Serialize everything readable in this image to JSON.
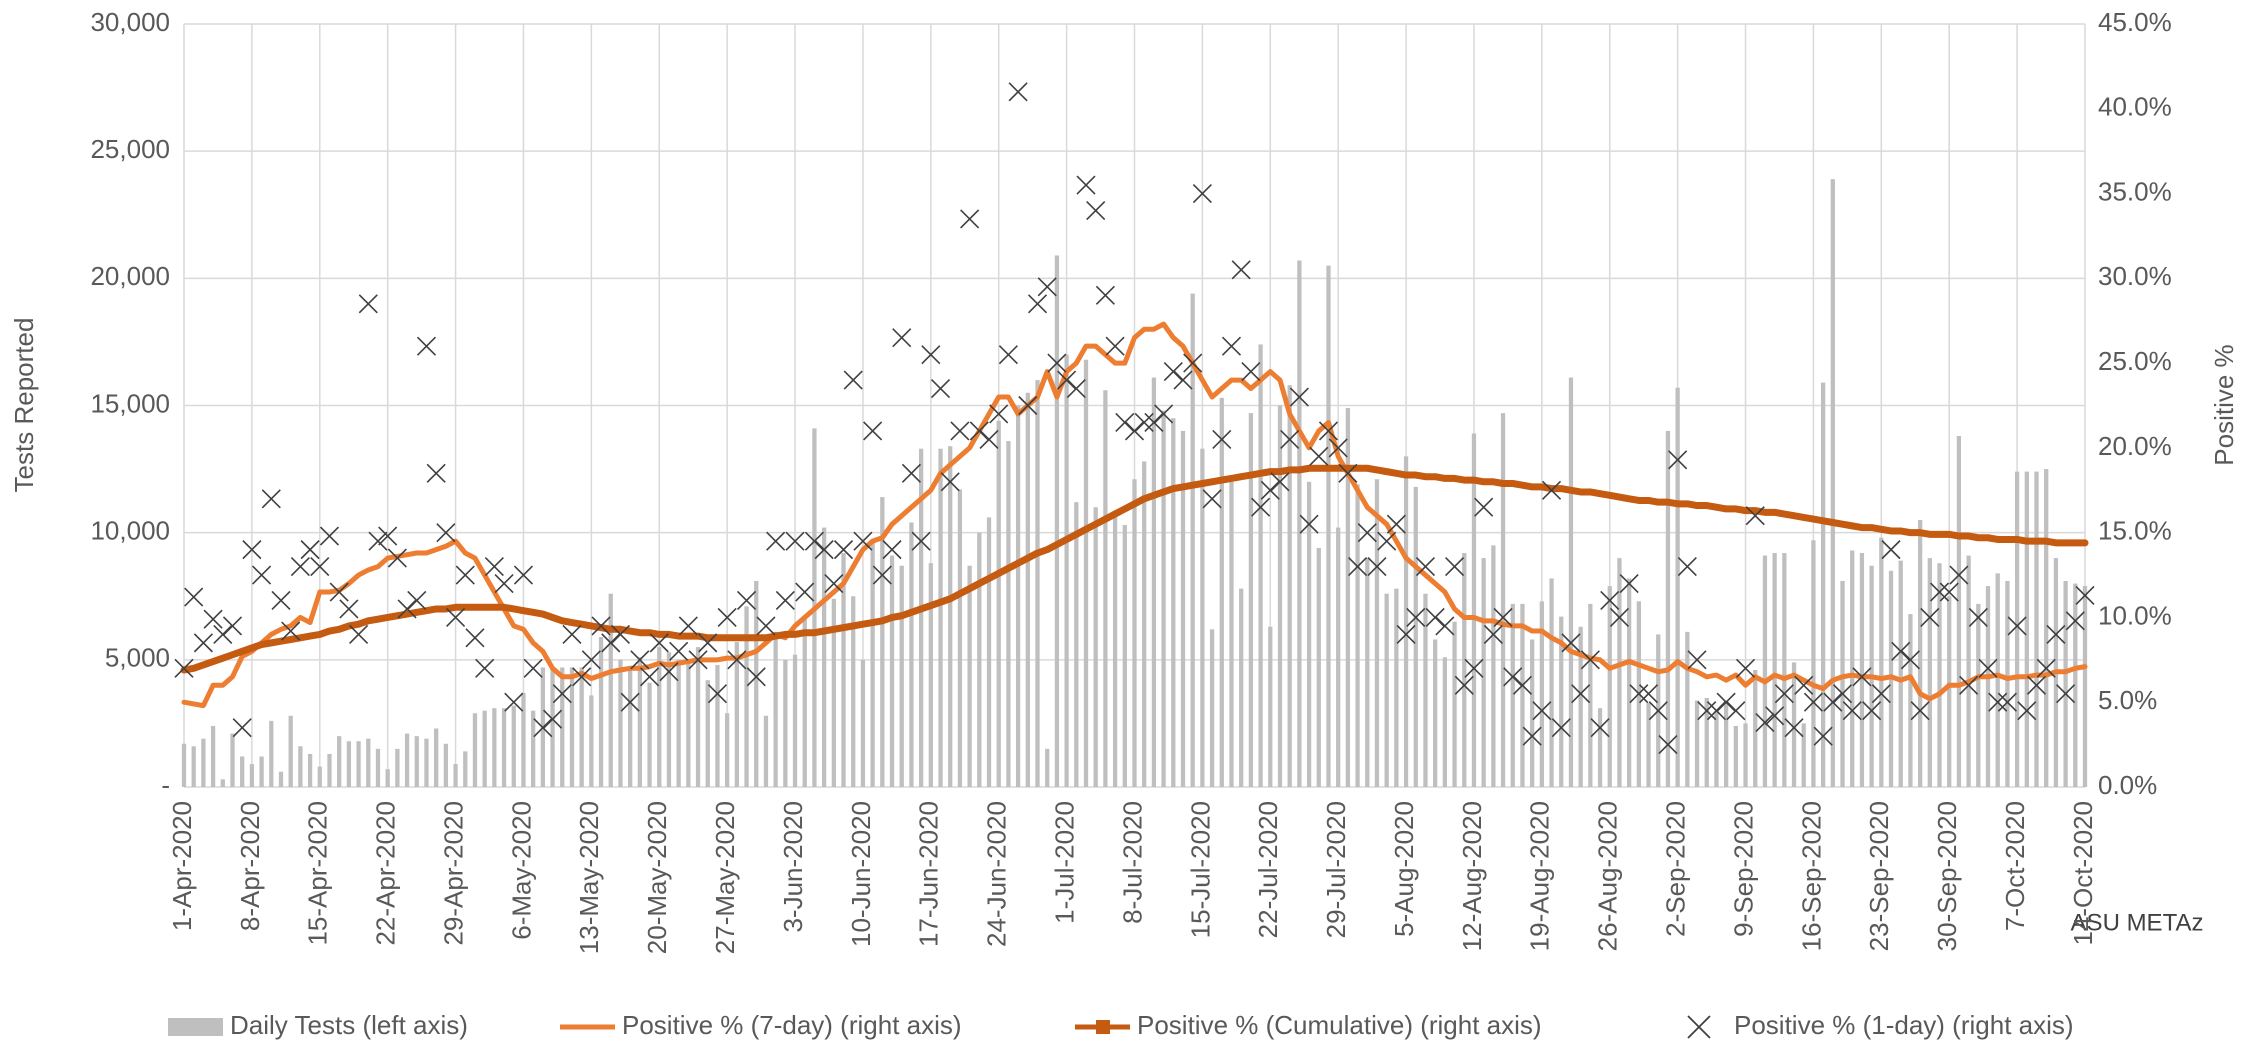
{
  "chart_data": {
    "type": "combo",
    "categories": [
      "1-Apr-2020",
      null,
      null,
      null,
      null,
      null,
      null,
      "8-Apr-2020",
      null,
      null,
      null,
      null,
      null,
      null,
      "15-Apr-2020",
      null,
      null,
      null,
      null,
      null,
      null,
      "22-Apr-2020",
      null,
      null,
      null,
      null,
      null,
      null,
      "29-Apr-2020",
      null,
      null,
      null,
      null,
      null,
      null,
      "6-May-2020",
      null,
      null,
      null,
      null,
      null,
      null,
      "13-May-2020",
      null,
      null,
      null,
      null,
      null,
      null,
      "20-May-2020",
      null,
      null,
      null,
      null,
      null,
      null,
      "27-May-2020",
      null,
      null,
      null,
      null,
      null,
      null,
      "3-Jun-2020",
      null,
      null,
      null,
      null,
      null,
      null,
      "10-Jun-2020",
      null,
      null,
      null,
      null,
      null,
      null,
      "17-Jun-2020",
      null,
      null,
      null,
      null,
      null,
      null,
      "24-Jun-2020",
      null,
      null,
      null,
      null,
      null,
      null,
      "1-Jul-2020",
      null,
      null,
      null,
      null,
      null,
      null,
      "8-Jul-2020",
      null,
      null,
      null,
      null,
      null,
      null,
      "15-Jul-2020",
      null,
      null,
      null,
      null,
      null,
      null,
      "22-Jul-2020",
      null,
      null,
      null,
      null,
      null,
      null,
      "29-Jul-2020",
      null,
      null,
      null,
      null,
      null,
      null,
      "5-Aug-2020",
      null,
      null,
      null,
      null,
      null,
      null,
      "12-Aug-2020",
      null,
      null,
      null,
      null,
      null,
      null,
      "19-Aug-2020",
      null,
      null,
      null,
      null,
      null,
      null,
      "26-Aug-2020",
      null,
      null,
      null,
      null,
      null,
      null,
      "2-Sep-2020",
      null,
      null,
      null,
      null,
      null,
      null,
      "9-Sep-2020",
      null,
      null,
      null,
      null,
      null,
      null,
      "16-Sep-2020",
      null,
      null,
      null,
      null,
      null,
      null,
      "23-Sep-2020",
      null,
      null,
      null,
      null,
      null,
      null,
      "30-Sep-2020",
      null,
      null,
      null,
      null,
      null,
      null,
      "7-Oct-2020",
      null,
      null,
      null,
      null,
      null,
      null,
      "14-Oct-2020"
    ],
    "series": [
      {
        "name": "Daily Tests (left axis)",
        "type": "bar",
        "axis": "y",
        "color": "#bfbfbf",
        "values": [
          1700,
          1600,
          1900,
          2400,
          300,
          2100,
          1200,
          900,
          1200,
          2600,
          600,
          2800,
          1600,
          1300,
          800,
          1300,
          2000,
          1800,
          1800,
          1900,
          1500,
          700,
          1500,
          2100,
          2000,
          1900,
          2300,
          1700,
          900,
          1400,
          2900,
          3000,
          3100,
          3100,
          3200,
          3700,
          3000,
          4700,
          4700,
          4700,
          4700,
          4700,
          3600,
          5900,
          7600,
          5000,
          4600,
          5100,
          4100,
          5500,
          5300,
          5000,
          4900,
          5500,
          4200,
          4800,
          2900,
          5700,
          7100,
          8100,
          2800,
          6100,
          5000,
          5200,
          6600,
          14100,
          10200,
          7400,
          9200,
          7500,
          5000,
          9700,
          11400,
          9100,
          8700,
          10400,
          13300,
          8800,
          13300,
          13400,
          11700,
          8700,
          10000,
          10600,
          14400,
          13600,
          15000,
          15500,
          16000,
          1500,
          20900,
          17000,
          11200,
          16800,
          11000,
          15600,
          10800,
          10300,
          12100,
          12800,
          16100,
          14800,
          14500,
          14000,
          19400,
          13300,
          6200,
          15300,
          12000,
          7800,
          14700,
          17400,
          6300,
          15000,
          15800,
          20700,
          12000,
          9400,
          20500,
          10200,
          14900,
          11900,
          9000,
          12100,
          7600,
          7800,
          13000,
          11800,
          7600,
          5800,
          5100,
          6500,
          9200,
          13900,
          9000,
          9500,
          14700,
          7200,
          7200,
          5800,
          7300,
          8200,
          6700,
          16100,
          6300,
          7200,
          3100,
          7900,
          9000,
          8200,
          7300,
          3300,
          6000,
          14000,
          15700,
          6100,
          3400,
          3500,
          3000,
          3400,
          2400,
          2500,
          4600,
          9100,
          9200,
          9200,
          4900,
          2500,
          9700,
          15900,
          23900,
          8100,
          9300,
          9200,
          8700,
          9800,
          8500,
          8900,
          6800,
          10500,
          9000,
          8800,
          7500,
          13800,
          9100,
          7200,
          7900,
          8400,
          8100,
          12400,
          12400,
          12400,
          12500,
          9000,
          8100,
          8000,
          7900
        ]
      },
      {
        "name": "Positive % (7-day) (right axis)",
        "type": "line",
        "axis": "y2",
        "color": "#ed7d31",
        "values": [
          5.0,
          4.9,
          4.8,
          6.0,
          6.0,
          6.5,
          7.7,
          8.0,
          8.5,
          9.0,
          9.3,
          9.5,
          10.0,
          9.7,
          11.5,
          11.5,
          11.6,
          12.0,
          12.5,
          12.8,
          13.0,
          13.5,
          13.6,
          13.7,
          13.8,
          13.8,
          14.0,
          14.2,
          14.5,
          13.8,
          13.5,
          12.5,
          11.5,
          10.5,
          9.5,
          9.3,
          8.5,
          8.0,
          7.0,
          6.5,
          6.5,
          6.7,
          6.4,
          6.6,
          6.8,
          6.9,
          7.0,
          7.0,
          7.1,
          7.3,
          7.2,
          7.3,
          7.4,
          7.5,
          7.5,
          7.5,
          7.6,
          7.6,
          7.8,
          8.0,
          8.5,
          9.0,
          8.8,
          9.5,
          10.0,
          10.5,
          11.0,
          11.5,
          12.0,
          13.0,
          14.0,
          14.5,
          14.7,
          15.5,
          16.0,
          16.5,
          17.0,
          17.5,
          18.5,
          19.0,
          19.5,
          20.0,
          21.0,
          22.0,
          23.0,
          23.0,
          22.0,
          22.5,
          23.0,
          24.5,
          23.0,
          24.5,
          25.0,
          26.0,
          26.0,
          25.5,
          25.0,
          25.0,
          26.5,
          27.0,
          27.0,
          27.3,
          26.5,
          26.0,
          25.0,
          24.0,
          23.0,
          23.5,
          24.0,
          24.0,
          23.5,
          24.0,
          24.5,
          24.0,
          22.0,
          21.0,
          20.0,
          21.0,
          21.5,
          19.5,
          18.5,
          17.5,
          16.5,
          16.0,
          15.5,
          14.5,
          13.5,
          13.0,
          12.5,
          12.0,
          11.5,
          10.5,
          10.0,
          10.0,
          9.8,
          9.8,
          9.6,
          9.5,
          9.5,
          9.2,
          9.2,
          8.8,
          8.5,
          8.0,
          7.8,
          7.6,
          7.5,
          7.0,
          7.2,
          7.4,
          7.2,
          7.0,
          6.8,
          6.9,
          7.4,
          7.0,
          6.8,
          6.5,
          6.6,
          6.3,
          6.6,
          6.0,
          6.5,
          6.2,
          6.6,
          6.4,
          6.6,
          6.3,
          6.0,
          5.8,
          6.3,
          6.5,
          6.6,
          6.5,
          6.5,
          6.4,
          6.5,
          6.3,
          6.5,
          5.5,
          5.2,
          5.5,
          6.0,
          6.0,
          6.2,
          6.5,
          6.5,
          6.6,
          6.4,
          6.5,
          6.5,
          6.6,
          6.6,
          6.8,
          6.8,
          7.0,
          7.1
        ]
      },
      {
        "name": "Positive % (Cumulative) (right axis)",
        "type": "line",
        "marker": "square",
        "axis": "y2",
        "color": "#c55a11",
        "values": [
          6.9,
          7.0,
          7.2,
          7.4,
          7.6,
          7.8,
          8.0,
          8.2,
          8.4,
          8.5,
          8.6,
          8.7,
          8.8,
          8.9,
          9.0,
          9.2,
          9.3,
          9.5,
          9.6,
          9.8,
          9.9,
          10.0,
          10.1,
          10.2,
          10.3,
          10.4,
          10.5,
          10.5,
          10.6,
          10.6,
          10.6,
          10.6,
          10.6,
          10.6,
          10.5,
          10.4,
          10.3,
          10.2,
          10.0,
          9.8,
          9.7,
          9.6,
          9.5,
          9.4,
          9.3,
          9.3,
          9.2,
          9.1,
          9.1,
          9.0,
          9.0,
          8.9,
          8.9,
          8.9,
          8.8,
          8.8,
          8.8,
          8.8,
          8.8,
          8.8,
          8.8,
          8.9,
          9.0,
          9.0,
          9.1,
          9.1,
          9.2,
          9.3,
          9.4,
          9.5,
          9.6,
          9.7,
          9.8,
          10.0,
          10.1,
          10.3,
          10.5,
          10.7,
          10.9,
          11.1,
          11.4,
          11.7,
          12.0,
          12.3,
          12.6,
          12.9,
          13.2,
          13.5,
          13.8,
          14.0,
          14.3,
          14.6,
          14.9,
          15.2,
          15.5,
          15.8,
          16.1,
          16.4,
          16.7,
          17.0,
          17.2,
          17.4,
          17.6,
          17.7,
          17.8,
          17.9,
          18.0,
          18.1,
          18.2,
          18.3,
          18.4,
          18.5,
          18.6,
          18.6,
          18.7,
          18.7,
          18.8,
          18.8,
          18.8,
          18.8,
          18.8,
          18.8,
          18.8,
          18.7,
          18.6,
          18.5,
          18.4,
          18.4,
          18.3,
          18.3,
          18.2,
          18.2,
          18.1,
          18.1,
          18.0,
          18.0,
          17.9,
          17.9,
          17.8,
          17.7,
          17.7,
          17.6,
          17.6,
          17.5,
          17.4,
          17.4,
          17.3,
          17.2,
          17.1,
          17.0,
          16.9,
          16.9,
          16.8,
          16.8,
          16.7,
          16.7,
          16.6,
          16.6,
          16.5,
          16.4,
          16.4,
          16.3,
          16.3,
          16.2,
          16.2,
          16.1,
          16.0,
          15.9,
          15.8,
          15.7,
          15.6,
          15.5,
          15.4,
          15.3,
          15.3,
          15.2,
          15.1,
          15.1,
          15.0,
          15.0,
          14.9,
          14.9,
          14.9,
          14.8,
          14.8,
          14.7,
          14.7,
          14.6,
          14.6,
          14.6,
          14.5,
          14.5,
          14.5,
          14.4,
          14.4,
          14.4,
          14.4
        ]
      },
      {
        "name": "Positive % (1-day) (right axis)",
        "type": "scatter",
        "marker": "x",
        "axis": "y2",
        "color": "#404040",
        "values": [
          7.0,
          11.2,
          8.5,
          9.9,
          9.0,
          9.5,
          3.5,
          14.0,
          12.5,
          17.0,
          11.0,
          9.2,
          13.0,
          14.0,
          13.0,
          14.8,
          11.5,
          10.5,
          9.0,
          28.5,
          14.5,
          14.8,
          13.5,
          10.5,
          11.0,
          26.0,
          18.5,
          15.0,
          10.0,
          12.5,
          8.8,
          7.0,
          13.0,
          12.0,
          5.0,
          12.5,
          7.0,
          3.5,
          4.0,
          5.5,
          9.0,
          6.5,
          7.5,
          9.5,
          8.5,
          9.0,
          5.0,
          7.5,
          6.5,
          8.5,
          6.8,
          8.0,
          9.5,
          7.5,
          8.5,
          5.5,
          10.0,
          7.5,
          11.0,
          6.5,
          9.5,
          14.5,
          11.0,
          14.5,
          11.5,
          14.5,
          14.0,
          12.0,
          14.0,
          24.0,
          14.5,
          21.0,
          12.5,
          14.0,
          26.5,
          18.5,
          14.5,
          25.5,
          23.5,
          18.0,
          21.0,
          33.5,
          21.0,
          20.5,
          22.0,
          25.5,
          41.0,
          22.5,
          28.5,
          29.5,
          25.0,
          24.0,
          23.5,
          35.5,
          34.0,
          29.0,
          26.0,
          21.5,
          21.0,
          21.5,
          21.5,
          22.0,
          24.5,
          24.0,
          25.0,
          35.0,
          17.0,
          20.5,
          26.0,
          30.5,
          24.5,
          16.5,
          17.5,
          18.0,
          20.5,
          23.0,
          15.5,
          19.5,
          21.0,
          20.0,
          18.5,
          13.0,
          15.0,
          13.0,
          14.5,
          15.5,
          9.0,
          10.0,
          13.0,
          10.0,
          9.5,
          13.0,
          6.0,
          7.0,
          16.5,
          9.0,
          10.0,
          6.5,
          6.0,
          3.0,
          4.5,
          17.5,
          3.5,
          8.5,
          5.5,
          7.5,
          3.5,
          11.0,
          10.0,
          12.0,
          5.5,
          5.5,
          4.5,
          2.5,
          19.3,
          13.0,
          7.5,
          4.5,
          4.5,
          5.0,
          4.5,
          7.0,
          16.0,
          3.8,
          4.2,
          5.5,
          3.5,
          6.0,
          5.0,
          3.0,
          5.0,
          5.5,
          4.5,
          6.5,
          4.5,
          5.5,
          14.0,
          8.0,
          7.5,
          4.5,
          10.0,
          11.5,
          11.5,
          12.5,
          6.0,
          10.0,
          7.0,
          5.0,
          5.0,
          9.5,
          4.5,
          6.0,
          7.0,
          9.0,
          5.5,
          9.8,
          11.3
        ]
      }
    ],
    "y_label": "Tests Reported",
    "y2_label": "Positive %",
    "ylim": [
      0,
      30000
    ],
    "yticks": [
      {
        "value": 0,
        "label": "-"
      },
      {
        "value": 5000,
        "label": "5,000"
      },
      {
        "value": 10000,
        "label": "10,000"
      },
      {
        "value": 15000,
        "label": "15,000"
      },
      {
        "value": 20000,
        "label": "20,000"
      },
      {
        "value": 25000,
        "label": "25,000"
      },
      {
        "value": 30000,
        "label": "30,000"
      }
    ],
    "y2lim": [
      0,
      45
    ],
    "y2ticks": [
      {
        "value": 0,
        "label": "0.0%"
      },
      {
        "value": 5,
        "label": "5.0%"
      },
      {
        "value": 10,
        "label": "10.0%"
      },
      {
        "value": 15,
        "label": "15.0%"
      },
      {
        "value": 20,
        "label": "20.0%"
      },
      {
        "value": 25,
        "label": "25.0%"
      },
      {
        "value": 30,
        "label": "30.0%"
      },
      {
        "value": 35,
        "label": "35.0%"
      },
      {
        "value": 40,
        "label": "40.0%"
      },
      {
        "value": 45,
        "label": "45.0%"
      }
    ],
    "grid": true,
    "legend": "bottom",
    "annotation": "ASU METAz"
  }
}
